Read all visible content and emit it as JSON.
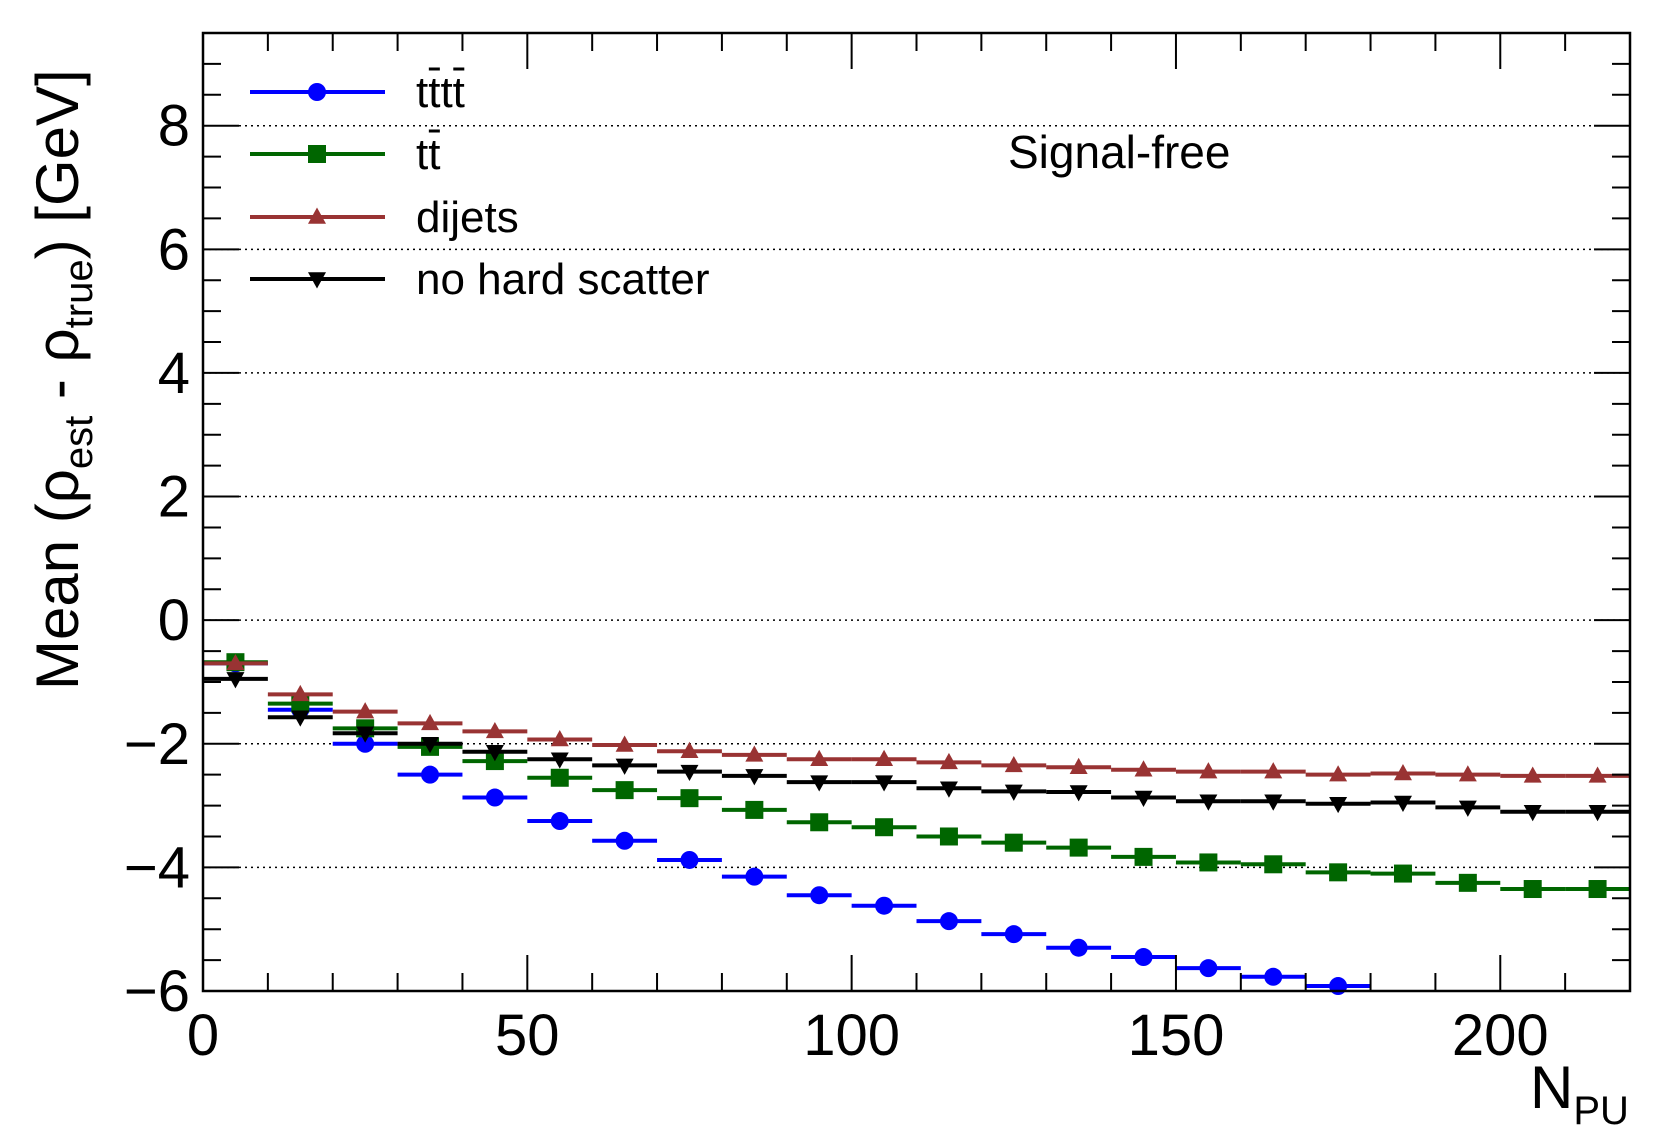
{
  "chart_data": {
    "type": "scatter",
    "title": "",
    "annotation": "Signal-free",
    "xlabel": {
      "main": "N",
      "sub": "PU"
    },
    "ylabel": {
      "prefix": "Mean (ρ",
      "est": "est",
      "mid": " - ρ",
      "true": "true",
      "suffix": ") [GeV]"
    },
    "xlim": [
      0,
      220
    ],
    "ylim": [
      -6,
      9.5
    ],
    "xticks": [
      0,
      50,
      100,
      150,
      200
    ],
    "xtick_labels": [
      "0",
      "50",
      "100",
      "150",
      "200"
    ],
    "yticks": [
      -6,
      -4,
      -2,
      0,
      2,
      4,
      6,
      8
    ],
    "ytick_labels": [
      "−6",
      "−4",
      "−2",
      "0",
      "2",
      "4",
      "6",
      "8"
    ],
    "grid_y": true,
    "bin_width": 10,
    "x": [
      5,
      15,
      25,
      35,
      45,
      55,
      65,
      75,
      85,
      95,
      105,
      115,
      125,
      135,
      145,
      155,
      165,
      175,
      185,
      195,
      205,
      215
    ],
    "legend_position": "top-left",
    "series": [
      {
        "name": "tt̄tt̄",
        "label_base": "tttt",
        "color": "#0000ff",
        "marker": "circle",
        "values": [
          -0.7,
          -1.45,
          -2.0,
          -2.5,
          -2.87,
          -3.25,
          -3.57,
          -3.88,
          -4.15,
          -4.45,
          -4.62,
          -4.87,
          -5.08,
          -5.3,
          -5.45,
          -5.63,
          -5.77,
          -5.92
        ]
      },
      {
        "name": "tt̄",
        "label_base": "tt",
        "color": "#006600",
        "marker": "square",
        "values": [
          -0.68,
          -1.35,
          -1.75,
          -2.05,
          -2.28,
          -2.55,
          -2.75,
          -2.88,
          -3.07,
          -3.27,
          -3.35,
          -3.5,
          -3.6,
          -3.68,
          -3.83,
          -3.92,
          -3.95,
          -4.08,
          -4.1,
          -4.25,
          -4.35,
          -4.35
        ]
      },
      {
        "name": "dijets",
        "label_base": "dijets",
        "color": "#993333",
        "marker": "triangle-up",
        "values": [
          -0.7,
          -1.2,
          -1.48,
          -1.67,
          -1.8,
          -1.93,
          -2.02,
          -2.12,
          -2.18,
          -2.25,
          -2.25,
          -2.3,
          -2.35,
          -2.38,
          -2.42,
          -2.45,
          -2.45,
          -2.5,
          -2.48,
          -2.5,
          -2.52,
          -2.52
        ]
      },
      {
        "name": "no hard scatter",
        "label_base": "no hard scatter",
        "color": "#000000",
        "marker": "triangle-down",
        "values": [
          -0.95,
          -1.57,
          -1.83,
          -2.0,
          -2.13,
          -2.25,
          -2.35,
          -2.45,
          -2.52,
          -2.62,
          -2.62,
          -2.72,
          -2.77,
          -2.78,
          -2.87,
          -2.93,
          -2.93,
          -2.97,
          -2.95,
          -3.03,
          -3.1,
          -3.1
        ]
      }
    ]
  }
}
